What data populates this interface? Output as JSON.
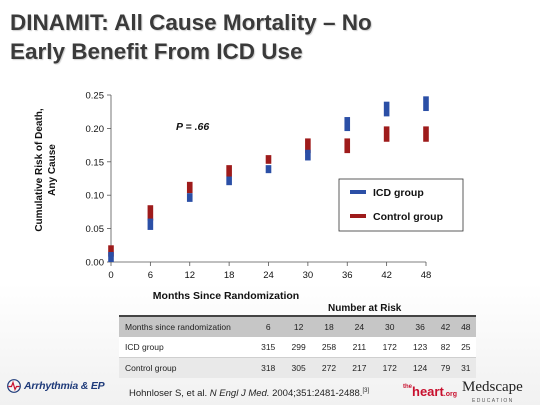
{
  "title": {
    "line1": "DINAMIT: All Cause Mortality – No",
    "line2": "Early Benefit From ICD Use"
  },
  "colors": {
    "icd": "#2b4fa6",
    "control": "#9e1b1b",
    "title": "#3a3a3a"
  },
  "chart_data": {
    "type": "bar",
    "xlabel": "Months Since Randomization",
    "ylabel_line1": "Cumulative Risk of Death,",
    "ylabel_line2": "Any Cause",
    "xlim": [
      0,
      48
    ],
    "ylim": [
      0,
      0.25
    ],
    "xticks": [
      0,
      6,
      12,
      18,
      24,
      30,
      36,
      42,
      48
    ],
    "xtick_labels": [
      "0",
      "6",
      "12",
      "18",
      "24",
      "30",
      "36",
      "42",
      "48"
    ],
    "yticks": [
      0,
      0.05,
      0.1,
      0.15,
      0.2,
      0.25
    ],
    "ytick_labels": [
      "0.00",
      "0.05",
      "0.10",
      "0.15",
      "0.20",
      "0.25"
    ],
    "grid": false,
    "legend_position": "lower-right",
    "annotation": "P = .66",
    "series": [
      {
        "name": "ICD group",
        "color": "#2b4fa6",
        "x": [
          0,
          6,
          12,
          18,
          24,
          30,
          36,
          42,
          48
        ],
        "low": [
          0.0,
          0.048,
          0.09,
          0.115,
          0.133,
          0.152,
          0.196,
          0.218,
          0.226
        ],
        "high": [
          0.015,
          0.065,
          0.103,
          0.128,
          0.145,
          0.168,
          0.217,
          0.24,
          0.248
        ]
      },
      {
        "name": "Control group",
        "color": "#9e1b1b",
        "x": [
          0,
          6,
          12,
          18,
          24,
          30,
          36,
          42,
          48
        ],
        "low": [
          0.008,
          0.062,
          0.103,
          0.128,
          0.147,
          0.163,
          0.163,
          0.18,
          0.18
        ],
        "high": [
          0.025,
          0.085,
          0.12,
          0.145,
          0.16,
          0.185,
          0.185,
          0.203,
          0.203
        ]
      }
    ]
  },
  "risk_table": {
    "title": "Number at Risk",
    "header": [
      "Months since randomization",
      "6",
      "12",
      "18",
      "24",
      "30",
      "36",
      "42",
      "48"
    ],
    "rows": [
      [
        "ICD group",
        "315",
        "299",
        "258",
        "211",
        "172",
        "123",
        "82",
        "25"
      ],
      [
        "Control group",
        "318",
        "305",
        "272",
        "217",
        "172",
        "124",
        "79",
        "31"
      ]
    ]
  },
  "citation": {
    "authors": "Hohnloser S, et al. ",
    "journal": "N Engl J Med.",
    "details": " 2004;351:2481-2488.",
    "ref": "[3]"
  },
  "logos": {
    "arrhythmia": "Arrhythmia & EP",
    "heart_small": "the",
    "heart_main": "heart",
    "heart_suffix": ".org",
    "medscape": "Medscape",
    "medscape_sub": "EDUCATION"
  }
}
